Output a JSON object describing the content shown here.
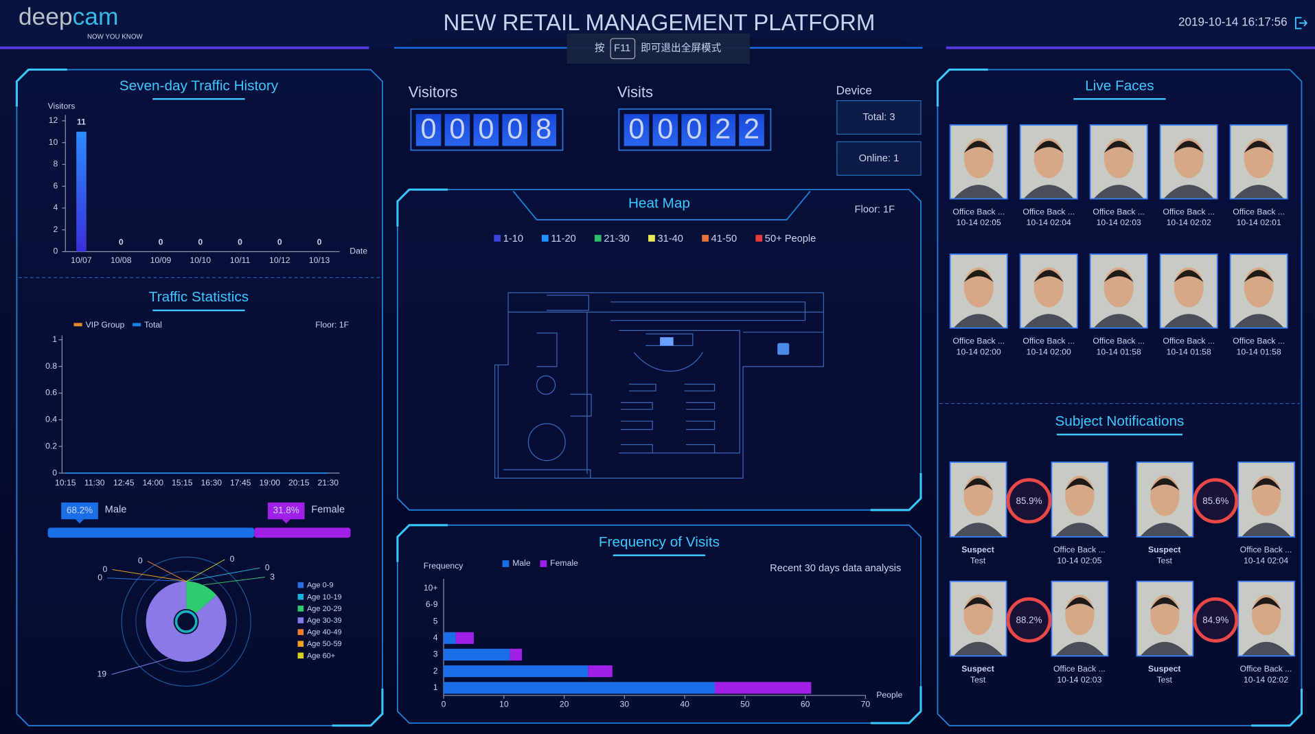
{
  "header": {
    "logo": [
      "deep",
      "cam"
    ],
    "tagline": "NOW YOU KNOW",
    "title": "NEW RETAIL MANAGEMENT PLATFORM",
    "hint": [
      "按",
      "F11",
      "即可退出全屏模式"
    ],
    "datetime": "2019-10-14 16:17:56"
  },
  "counters": [
    {
      "label": "Visitors",
      "digits": [
        "0",
        "0",
        "0",
        "0",
        "8"
      ]
    },
    {
      "label": "Visits",
      "digits": [
        "0",
        "0",
        "0",
        "2",
        "2"
      ]
    }
  ],
  "device": {
    "title": "Device",
    "total": "Total: 3",
    "online": "Online: 1"
  },
  "heat_map": {
    "title": "Heat Map",
    "floor": "Floor: 1F",
    "legend": [
      {
        "label": "1-10",
        "color": "#3b44d8"
      },
      {
        "label": "11-20",
        "color": "#1e90ff"
      },
      {
        "label": "21-30",
        "color": "#2ebd6a"
      },
      {
        "label": "31-40",
        "color": "#e8e85a"
      },
      {
        "label": "41-50",
        "color": "#e8733a"
      },
      {
        "label": "50+ People",
        "color": "#e83a3a"
      }
    ]
  },
  "live_faces": {
    "title": "Live Faces",
    "items": [
      {
        "name": "Office Back ...",
        "time": "10-14 02:05"
      },
      {
        "name": "Office Back ...",
        "time": "10-14 02:04"
      },
      {
        "name": "Office Back ...",
        "time": "10-14 02:03"
      },
      {
        "name": "Office Back ...",
        "time": "10-14 02:02"
      },
      {
        "name": "Office Back ...",
        "time": "10-14 02:01"
      },
      {
        "name": "Office Back ...",
        "time": "10-14 02:00"
      },
      {
        "name": "Office Back ...",
        "time": "10-14 02:00"
      },
      {
        "name": "Office Back ...",
        "time": "10-14 01:58"
      },
      {
        "name": "Office Back ...",
        "time": "10-14 01:58"
      },
      {
        "name": "Office Back ...",
        "time": "10-14 01:58"
      }
    ]
  },
  "notifications": {
    "title": "Subject Notifications",
    "items": [
      {
        "score": "85.9%",
        "tag": "Suspect",
        "group": "Test",
        "name": "Office Back ...",
        "time": "10-14 02:05"
      },
      {
        "score": "85.6%",
        "tag": "Suspect",
        "group": "Test",
        "name": "Office Back ...",
        "time": "10-14 02:04"
      },
      {
        "score": "88.2%",
        "tag": "Suspect",
        "group": "Test",
        "name": "Office Back ...",
        "time": "10-14 02:03"
      },
      {
        "score": "84.9%",
        "tag": "Suspect",
        "group": "Test",
        "name": "Office Back ...",
        "time": "10-14 02:02"
      }
    ]
  },
  "chart_data": [
    {
      "type": "bar",
      "title": "Seven-day Traffic History",
      "y_label": "Visitors",
      "x_label": "Date",
      "categories": [
        "10/07",
        "10/08",
        "10/09",
        "10/10",
        "10/11",
        "10/12",
        "10/13"
      ],
      "values": [
        11,
        0,
        0,
        0,
        0,
        0,
        0
      ],
      "color": "#1f6bff",
      "ylim": [
        0,
        12
      ],
      "yticks": [
        0,
        2,
        4,
        6,
        8,
        10,
        12
      ]
    },
    {
      "type": "line",
      "title": "Traffic Statistics",
      "subtitle": "Floor: 1F",
      "categories": [
        "10:15",
        "11:30",
        "12:45",
        "14:00",
        "15:15",
        "16:30",
        "17:45",
        "19:00",
        "20:15",
        "21:30"
      ],
      "series": [
        {
          "name": "VIP Group",
          "color": "#e8862a",
          "values": [
            0,
            0,
            0,
            0,
            0,
            0,
            0,
            0,
            0,
            0
          ]
        },
        {
          "name": "Total",
          "color": "#1a7fe0",
          "values": [
            0,
            0,
            0,
            0,
            0,
            0,
            0,
            0,
            0,
            0
          ]
        }
      ],
      "ylim": [
        0,
        1
      ],
      "yticks": [
        0,
        0.2,
        0.4,
        0.6,
        0.8,
        1
      ]
    },
    {
      "type": "stacked-bar",
      "categories": [
        "Male",
        "Female"
      ],
      "values": [
        68.2,
        31.8
      ],
      "value_labels": [
        "68.2%",
        "31.8%"
      ],
      "colors": [
        "#1a6fe8",
        "#a020e8"
      ],
      "xlim": [
        0,
        100
      ]
    },
    {
      "type": "pie",
      "categories": [
        "Age 0-9",
        "Age 10-19",
        "Age 20-29",
        "Age 30-39",
        "Age 40-49",
        "Age 50-59",
        "Age 60+"
      ],
      "values": [
        0,
        0,
        3,
        19,
        0,
        0,
        0
      ],
      "colors": [
        "#2a6fe0",
        "#1ab0e0",
        "#2ecc71",
        "#8a7ae8",
        "#f08030",
        "#f0a020",
        "#d4d020"
      ]
    },
    {
      "type": "hbar-stacked",
      "title": "Frequency of Visits",
      "subtitle": "Recent 30 days data analysis",
      "y_label": "Frequency",
      "x_label": "People",
      "categories": [
        "1",
        "2",
        "3",
        "4",
        "5",
        "6-9",
        "10+"
      ],
      "series": [
        {
          "name": "Male",
          "color": "#1a6fe8",
          "values": [
            45,
            24,
            11,
            2,
            0,
            0,
            0
          ]
        },
        {
          "name": "Female",
          "color": "#a020e8",
          "values": [
            16,
            4,
            2,
            3,
            0,
            0,
            0
          ]
        }
      ],
      "xlim": [
        0,
        70
      ],
      "xticks": [
        0,
        10,
        20,
        30,
        40,
        50,
        60,
        70
      ]
    }
  ]
}
